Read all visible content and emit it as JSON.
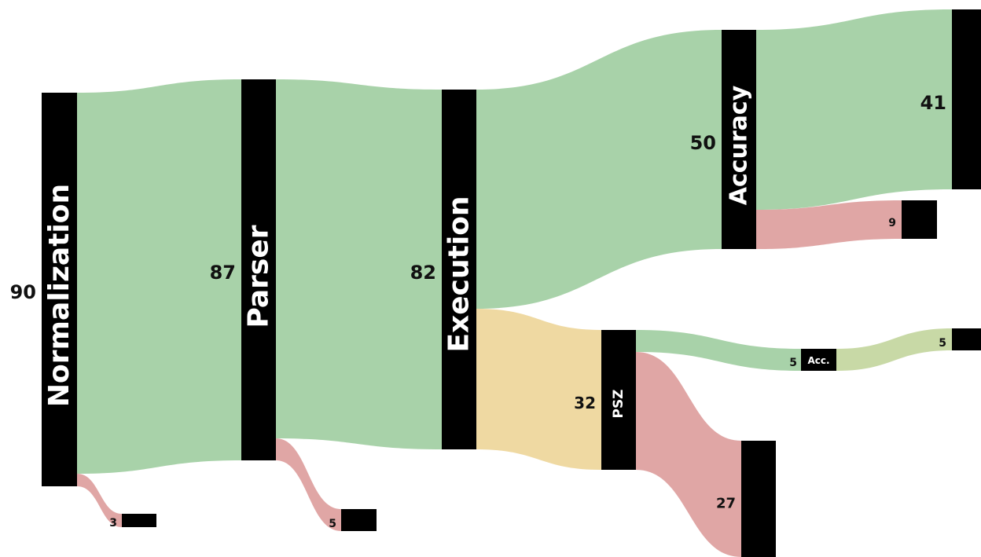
{
  "colors": {
    "pass": "#a8d2a9",
    "fail": "#e0a6a5",
    "psz": "#efd9a2",
    "acc_psz": "#c8d9a6",
    "node": "#000000",
    "value_text": "#111111",
    "stage_text": "#ffffff"
  },
  "nodes": {
    "normalization": {
      "label": "Normalization",
      "value": "90"
    },
    "norm_fail": {
      "label": "",
      "value": "3"
    },
    "parser": {
      "label": "Parser",
      "value": "87"
    },
    "parser_fail": {
      "label": "",
      "value": "5"
    },
    "execution": {
      "label": "Execution",
      "value": "82"
    },
    "accuracy": {
      "label": "Accuracy",
      "value": "50"
    },
    "acc_pass": {
      "label": "",
      "value": "41"
    },
    "acc_fail": {
      "label": "",
      "value": "9"
    },
    "psz": {
      "label": "PSZ",
      "value": "32"
    },
    "psz_fail": {
      "label": "",
      "value": "27"
    },
    "psz_acc": {
      "label": "Acc.",
      "value": "5"
    },
    "psz_acc_out": {
      "label": "",
      "value": "5"
    }
  },
  "links": [
    {
      "from": "normalization",
      "to": "parser",
      "value": 87,
      "kind": "pass"
    },
    {
      "from": "normalization",
      "to": "norm_fail",
      "value": 3,
      "kind": "fail"
    },
    {
      "from": "parser",
      "to": "execution",
      "value": 82,
      "kind": "pass"
    },
    {
      "from": "parser",
      "to": "parser_fail",
      "value": 5,
      "kind": "fail"
    },
    {
      "from": "execution",
      "to": "accuracy",
      "value": 50,
      "kind": "pass"
    },
    {
      "from": "execution",
      "to": "psz",
      "value": 32,
      "kind": "psz"
    },
    {
      "from": "accuracy",
      "to": "acc_pass",
      "value": 41,
      "kind": "pass"
    },
    {
      "from": "accuracy",
      "to": "acc_fail",
      "value": 9,
      "kind": "fail"
    },
    {
      "from": "psz",
      "to": "psz_acc",
      "value": 5,
      "kind": "pass"
    },
    {
      "from": "psz",
      "to": "psz_fail",
      "value": 27,
      "kind": "fail"
    },
    {
      "from": "psz_acc",
      "to": "psz_acc_out",
      "value": 5,
      "kind": "acc_psz"
    }
  ]
}
